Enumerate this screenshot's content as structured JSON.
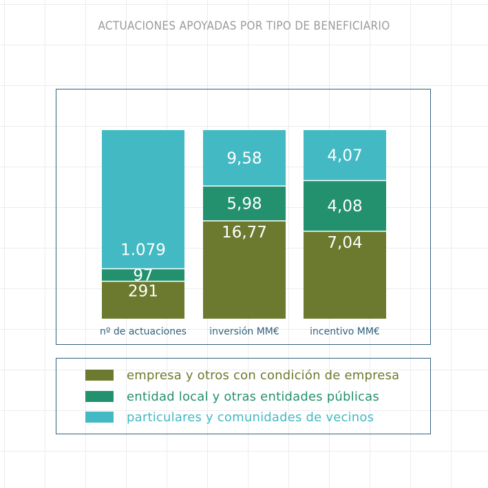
{
  "chart_data": {
    "type": "stacked_bar_100",
    "title": "ACTUACIONES APOYADAS POR TIPO DE BENEFICIARIO",
    "categories": [
      "nº de actuaciones",
      "inversión MM€",
      "incentivo MM€"
    ],
    "series": [
      {
        "name": "empresa y otros con condición de empresa",
        "color": "#6b7a2e",
        "text_color": "#6b7a2e",
        "values": [
          291,
          16.77,
          7.04
        ],
        "labels": [
          "291",
          "16,77",
          "7,04"
        ]
      },
      {
        "name": "entidad local y otras entidades públicas",
        "color": "#23906e",
        "text_color": "#23906e",
        "values": [
          97,
          5.98,
          4.08
        ],
        "labels": [
          "97",
          "5,98",
          "4,08"
        ]
      },
      {
        "name": "particulares y comunidades de vecinos",
        "color": "#43b9c4",
        "text_color": "#43b9c4",
        "values": [
          1079,
          9.58,
          4.07
        ],
        "labels": [
          "1.079",
          "9,58",
          "4,07"
        ]
      }
    ],
    "ylim": [
      0,
      1
    ],
    "axis_label_color": "#2f5f7c",
    "value_label_color": "#ffffff"
  }
}
